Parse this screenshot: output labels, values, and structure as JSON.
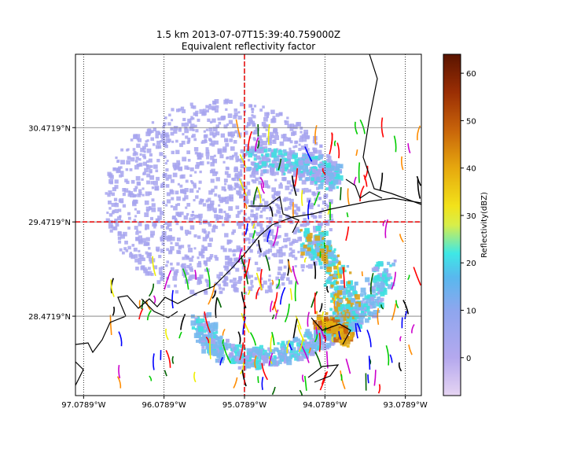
{
  "title": {
    "line1": "1.5 km 2013-07-07T15:39:40.759000Z",
    "line2": "Equivalent reflectivity factor"
  },
  "map": {
    "lon_range": [
      -97.18,
      -92.88
    ],
    "lat_range": [
      27.63,
      31.25
    ],
    "lon_ticks": [
      {
        "value": -97.0789,
        "label": "97.0789°W"
      },
      {
        "value": -96.0789,
        "label": "96.0789°W"
      },
      {
        "value": -95.0789,
        "label": "95.0789°W"
      },
      {
        "value": -94.0789,
        "label": "94.0789°W"
      },
      {
        "value": -93.0789,
        "label": "93.0789°W"
      }
    ],
    "lat_ticks": [
      {
        "value": 30.4719,
        "label": "30.4719°N"
      },
      {
        "value": 29.4719,
        "label": "29.4719°N"
      },
      {
        "value": 28.4719,
        "label": "28.4719°N"
      }
    ],
    "radar_site": {
      "lon": -95.0789,
      "lat": 29.4719
    },
    "crosshair_color": "#e60000",
    "gridline_color": "#000000"
  },
  "colorbar": {
    "label": "Reflectivity(dBZ)",
    "vmin": -8,
    "vmax": 64,
    "ticks": [
      {
        "value": 0,
        "label": "0"
      },
      {
        "value": 10,
        "label": "10"
      },
      {
        "value": 20,
        "label": "20"
      },
      {
        "value": 30,
        "label": "30"
      },
      {
        "value": 40,
        "label": "40"
      },
      {
        "value": 50,
        "label": "50"
      },
      {
        "value": 60,
        "label": "60"
      }
    ],
    "stops": [
      {
        "value": -8,
        "color": "#e6d4f2"
      },
      {
        "value": 0,
        "color": "#b4a8ee"
      },
      {
        "value": 10,
        "color": "#8ea6ee"
      },
      {
        "value": 17,
        "color": "#58b8ee"
      },
      {
        "value": 22,
        "color": "#3ee8e6"
      },
      {
        "value": 28,
        "color": "#d8ee4a"
      },
      {
        "value": 32,
        "color": "#f2e21a"
      },
      {
        "value": 40,
        "color": "#e6a80e"
      },
      {
        "value": 48,
        "color": "#c8640a"
      },
      {
        "value": 56,
        "color": "#9a2e04"
      },
      {
        "value": 64,
        "color": "#5a1400"
      }
    ]
  },
  "colors": {
    "light_echo": "#a7a4ee",
    "medium_echo": "#7ab8ee",
    "cyan_echo": "#3ee0e0",
    "strong_echo": "#d8a21a",
    "coastline": "#000000"
  }
}
